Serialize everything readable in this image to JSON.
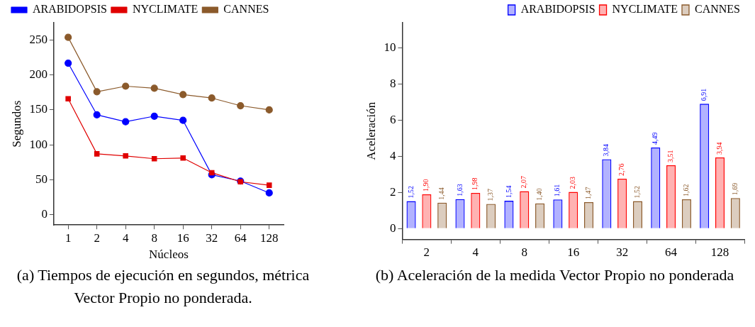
{
  "chart_data": [
    {
      "type": "line",
      "categories": [
        "1",
        "2",
        "4",
        "8",
        "16",
        "32",
        "64",
        "128"
      ],
      "xlabel": "Núcleos",
      "ylabel": "Segundos",
      "ylim": [
        -15,
        275
      ],
      "yticks": [
        0,
        50,
        100,
        150,
        200,
        250
      ],
      "grid": false,
      "legend": "top",
      "line_style": "solid",
      "series": [
        {
          "name": "ARABIDOPSIS",
          "color": "#0000ff",
          "marker": "circle",
          "values": [
            217,
            143,
            133,
            141,
            135,
            57,
            48,
            31
          ]
        },
        {
          "name": "NYCLIMATE",
          "color": "#e00000",
          "marker": "square",
          "values": [
            166,
            87,
            84,
            80,
            81,
            60,
            47,
            42
          ]
        },
        {
          "name": "CANNES",
          "color": "#8b5a2b",
          "marker": "circle",
          "values": [
            254,
            176,
            184,
            181,
            172,
            167,
            156,
            150
          ]
        }
      ],
      "annotations": [
        "(a) Tiempos de ejecución en segundos, métrica Vector Propio no ponderada."
      ]
    },
    {
      "type": "bar",
      "categories": [
        "2",
        "4",
        "8",
        "16",
        "32",
        "64",
        "128"
      ],
      "ylabel": "Aceleración",
      "ylim": [
        -0.6,
        11.4
      ],
      "yticks": [
        0,
        2,
        4,
        6,
        8,
        10
      ],
      "grid": false,
      "legend": "top",
      "series": [
        {
          "name": "ARABIDOPSIS",
          "color": "#0000ff",
          "values": [
            1.52,
            1.63,
            1.54,
            1.61,
            3.84,
            4.49,
            6.91
          ],
          "value_labels": [
            "1,52",
            "1,63",
            "1,54",
            "1,61",
            "3,84",
            "4,49",
            "6,91"
          ]
        },
        {
          "name": "NYCLIMATE",
          "color": "#ff0000",
          "values": [
            1.9,
            1.98,
            2.07,
            2.03,
            2.76,
            3.51,
            3.94
          ],
          "value_labels": [
            "1,90",
            "1,98",
            "2,07",
            "2,03",
            "2,76",
            "3,51",
            "3,94"
          ]
        },
        {
          "name": "CANNES",
          "color": "#8b5a2b",
          "values": [
            1.44,
            1.37,
            1.4,
            1.47,
            1.52,
            1.62,
            1.69
          ],
          "value_labels": [
            "1,44",
            "1,37",
            "1,40",
            "1,47",
            "1,52",
            "1,62",
            "1,69"
          ]
        }
      ],
      "annotations": [
        "(b) Aceleración de la medida Vector Propio no ponderada"
      ]
    }
  ]
}
